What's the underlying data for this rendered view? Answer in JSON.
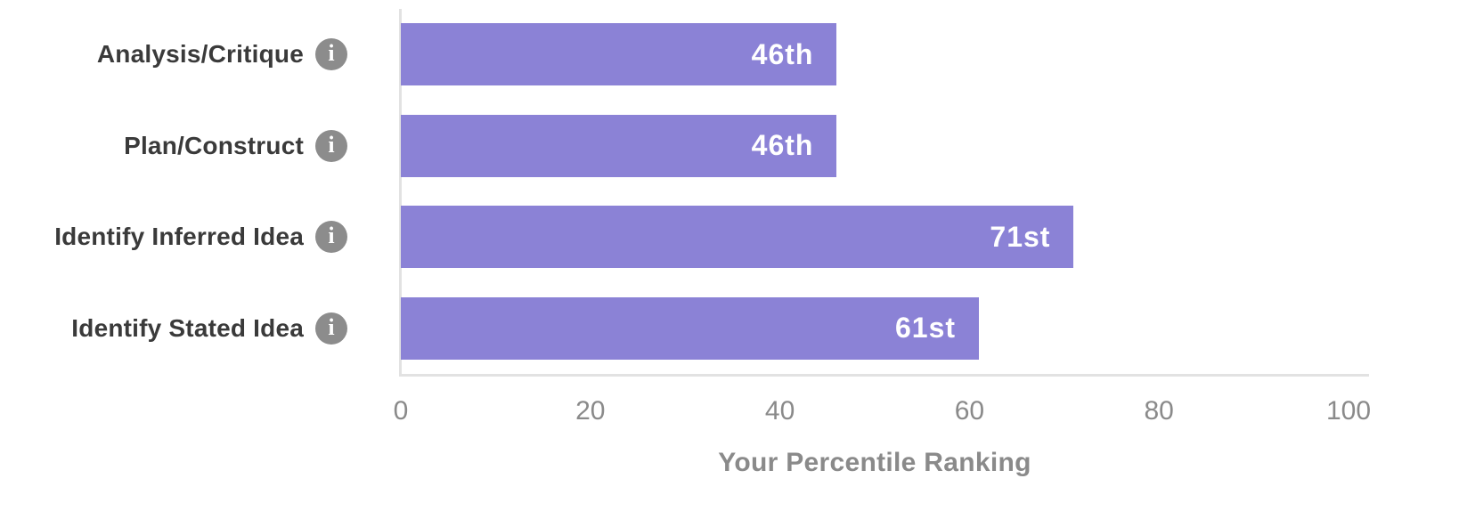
{
  "chart_data": {
    "type": "bar",
    "orientation": "horizontal",
    "title": "",
    "xlabel": "Your Percentile Ranking",
    "ylabel": "",
    "xlim": [
      0,
      100
    ],
    "x_ticks": [
      "0",
      "20",
      "40",
      "60",
      "80",
      "100"
    ],
    "grid": false,
    "categories": [
      "Analysis/Critique",
      "Plan/Construct",
      "Identify Inferred Idea",
      "Identify Stated Idea"
    ],
    "values": [
      46,
      46,
      71,
      61
    ],
    "bar_labels": [
      "46th",
      "46th",
      "71st",
      "61st"
    ],
    "colors": {
      "bar": "#8b82d6",
      "bar_label": "#ffffff",
      "category_label": "#3a3a3a",
      "info_icon": "#8c8c8c",
      "tick_label": "#8a8a8a",
      "axis_line": "#e2e2e2"
    },
    "row_icon": "info-circle-icon",
    "info_glyph": "i"
  }
}
